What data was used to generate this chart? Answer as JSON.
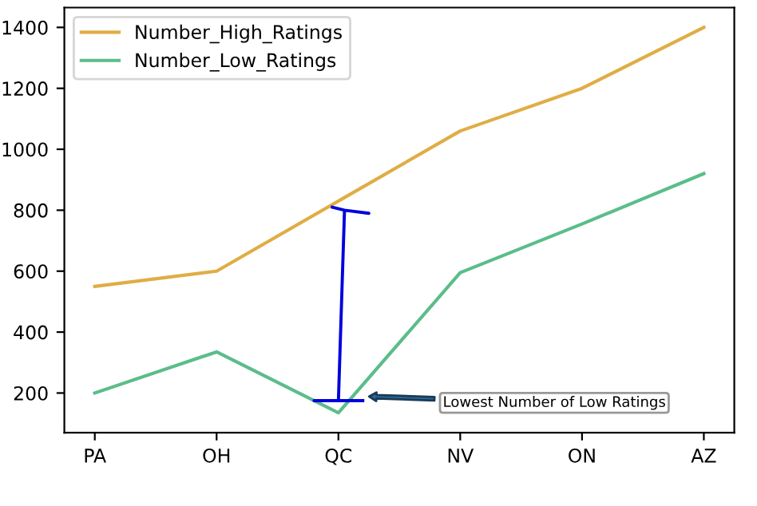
{
  "chart_data": {
    "type": "line",
    "categories": [
      "PA",
      "OH",
      "QC",
      "NV",
      "ON",
      "AZ"
    ],
    "series": [
      {
        "name": "Number_High_Ratings",
        "color": "#e0ad45",
        "values": [
          550,
          600,
          830,
          1060,
          1200,
          1400
        ]
      },
      {
        "name": "Number_Low_Ratings",
        "color": "#5bbd8a",
        "values": [
          200,
          335,
          135,
          595,
          755,
          920
        ]
      }
    ],
    "ylim": [
      70,
      1465
    ],
    "yticks": [
      200,
      400,
      600,
      800,
      1000,
      1200,
      1400
    ],
    "annotations": [
      "Lowest Number of Low Ratings"
    ],
    "grid": false,
    "legend": "top left",
    "line_style": "solid"
  }
}
